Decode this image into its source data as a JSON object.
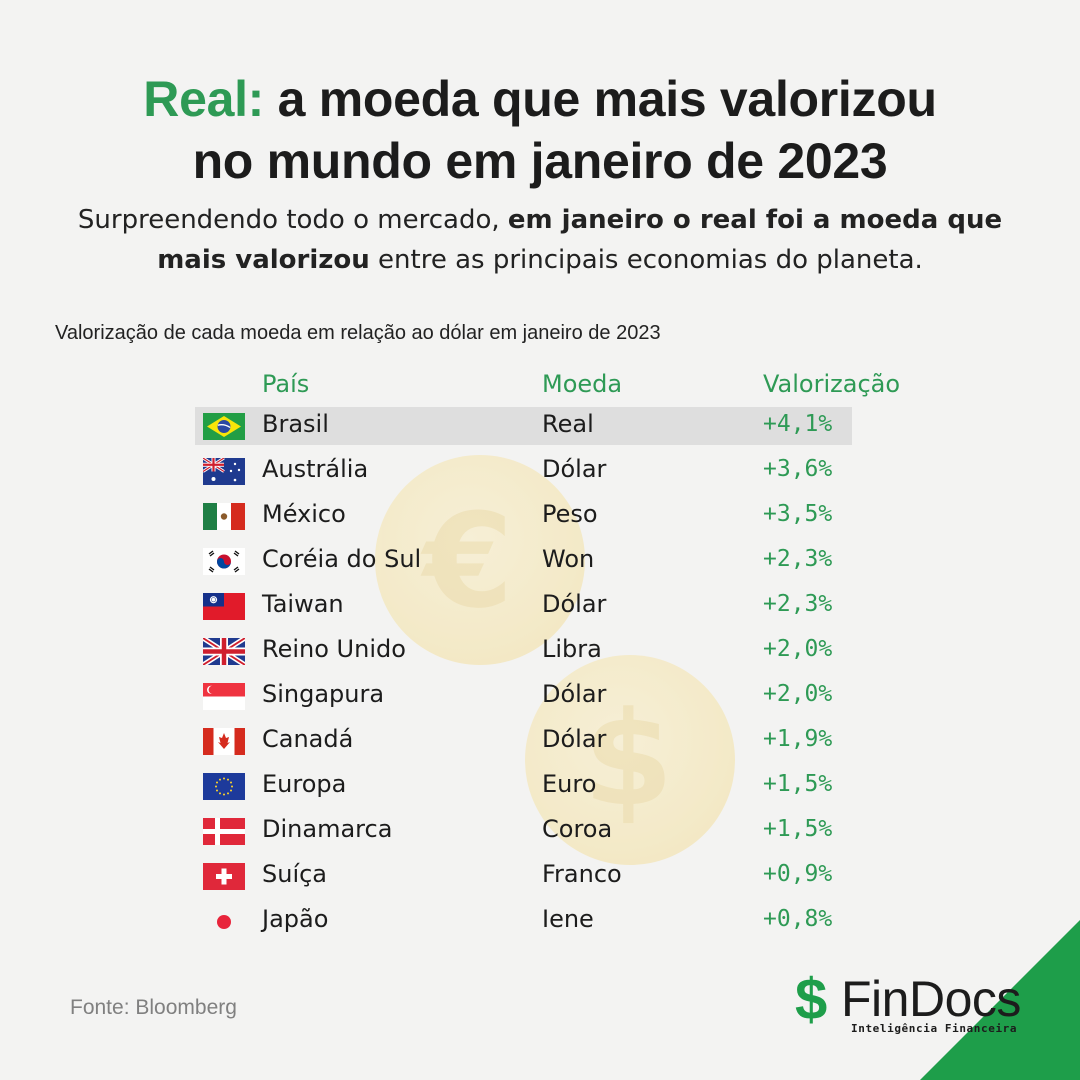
{
  "title": {
    "accent": "Real:",
    "line1_rest": " a moeda que mais valorizou",
    "line2": "no mundo em janeiro de 2023"
  },
  "subtitle": {
    "part1": "Surpreendendo todo o mercado, ",
    "bold1": "em janeiro o real foi a moeda que",
    "bold2": "mais valorizou",
    "part2": " entre as principais economias do planeta."
  },
  "caption": "Valorização de cada moeda em relação ao dólar em janeiro de 2023",
  "table": {
    "headers": {
      "country": "País",
      "currency": "Moeda",
      "change": "Valorização"
    },
    "rows": [
      {
        "flag": "brazil-flag",
        "country": "Brasil",
        "currency": "Real",
        "change": "+4,1%"
      },
      {
        "flag": "australia-flag",
        "country": "Austrália",
        "currency": "Dólar",
        "change": "+3,6%"
      },
      {
        "flag": "mexico-flag",
        "country": "México",
        "currency": "Peso",
        "change": "+3,5%"
      },
      {
        "flag": "south-korea-flag",
        "country": "Coréia do Sul",
        "currency": "Won",
        "change": "+2,3%"
      },
      {
        "flag": "taiwan-flag",
        "country": "Taiwan",
        "currency": "Dólar",
        "change": "+2,3%"
      },
      {
        "flag": "uk-flag",
        "country": "Reino Unido",
        "currency": "Libra",
        "change": "+2,0%"
      },
      {
        "flag": "singapore-flag",
        "country": "Singapura",
        "currency": "Dólar",
        "change": "+2,0%"
      },
      {
        "flag": "canada-flag",
        "country": "Canadá",
        "currency": "Dólar",
        "change": "+1,9%"
      },
      {
        "flag": "eu-flag",
        "country": "Europa",
        "currency": "Euro",
        "change": "+1,5%"
      },
      {
        "flag": "denmark-flag",
        "country": "Dinamarca",
        "currency": "Coroa",
        "change": "+1,5%"
      },
      {
        "flag": "switzerland-flag",
        "country": "Suíça",
        "currency": "Franco",
        "change": "+0,9%"
      },
      {
        "flag": "japan-flag",
        "country": "Japão",
        "currency": "Iene",
        "change": "+0,8%"
      }
    ]
  },
  "source": "Fonte: Bloomberg",
  "logo": {
    "symbol": "$",
    "name": "FinDocs",
    "tagline": "Inteligência Financeira"
  },
  "colors": {
    "accent": "#2e9a55",
    "brand": "#1e9e4a",
    "highlight": "#dedede",
    "background": "#f3f3f2"
  }
}
